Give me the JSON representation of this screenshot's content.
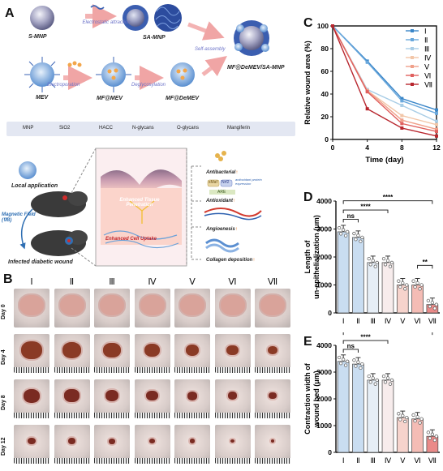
{
  "panels": {
    "a": "A",
    "b": "B",
    "c": "C",
    "d": "D",
    "e": "E"
  },
  "schematic": {
    "row1": {
      "smnp": "S-MNP",
      "samnp": "SA-MNP",
      "arrow_note": "Electrostatic attraction"
    },
    "row2": {
      "mev": "MEV",
      "mfmev": "MF@MEV",
      "mfdemev": "MF@DeMEV",
      "electroporation": "Electroporation",
      "deglycosylation": "Deglycosylation"
    },
    "assembly": {
      "note": "Self-assembly",
      "product": "MF@DeMEV/SA-MNP"
    },
    "legend": [
      "MNP",
      "SiO2",
      "HACC",
      "N-glycans",
      "O-glycans",
      "Mangiferin"
    ],
    "mouse": {
      "local": "Local  application",
      "field": "Magnetic Field (∇B)",
      "infected": "Infected diabetic wound"
    },
    "tissue": {
      "text1": "Enhanced Tissue Penetration",
      "text2": "Enhanced Cell Uptake"
    },
    "outcomes": [
      "Antibacterial",
      "Antioxidant",
      "Angioenesis",
      "Collagen deposition"
    ],
    "arrow_glyph": "↑",
    "antioxidant_labels": {
      "keap": "sMaf",
      "nrf": "Nrf2",
      "are": "ARE",
      "anti": "antioxidant protein expression"
    }
  },
  "photos": {
    "groups": [
      "Ⅰ",
      "Ⅱ",
      "Ⅲ",
      "Ⅳ",
      "Ⅴ",
      "Ⅵ",
      "Ⅶ"
    ],
    "days": [
      "Day 0",
      "Day 4",
      "Day 8",
      "Day 12"
    ]
  },
  "chart_data": [
    {
      "type": "line",
      "title": "",
      "xlabel": "Time (day)",
      "ylabel": "Relative wound area (%)",
      "x": [
        0,
        4,
        8,
        12
      ],
      "xlim": [
        0,
        12
      ],
      "ylim": [
        0,
        100
      ],
      "yticks": [
        0,
        20,
        40,
        60,
        80,
        100
      ],
      "xticks": [
        0,
        4,
        8,
        12
      ],
      "legend": "top-right",
      "series": [
        {
          "name": "Ⅰ",
          "values": [
            100,
            69,
            36,
            26
          ],
          "color": "#3a86c8"
        },
        {
          "name": "Ⅱ",
          "values": [
            100,
            68,
            34,
            23
          ],
          "color": "#6aa8dc"
        },
        {
          "name": "Ⅲ",
          "values": [
            100,
            44,
            30,
            16
          ],
          "color": "#a9cde6"
        },
        {
          "name": "Ⅳ",
          "values": [
            100,
            43,
            21,
            13
          ],
          "color": "#f2c6a8"
        },
        {
          "name": "Ⅴ",
          "values": [
            100,
            43,
            17,
            9
          ],
          "color": "#f0a08a"
        },
        {
          "name": "Ⅵ",
          "values": [
            100,
            42,
            14,
            7
          ],
          "color": "#e0605e"
        },
        {
          "name": "Ⅶ",
          "values": [
            100,
            27,
            10,
            3
          ],
          "color": "#b8262e"
        }
      ]
    },
    {
      "type": "bar",
      "title": "",
      "ylabel": "Length of un-epithelialization (μm)",
      "categories": [
        "Ⅰ",
        "Ⅱ",
        "Ⅲ",
        "Ⅳ",
        "Ⅴ",
        "Ⅵ",
        "Ⅶ"
      ],
      "values": [
        2900,
        2700,
        1800,
        1800,
        1000,
        1000,
        300
      ],
      "ylim": [
        0,
        4000
      ],
      "yticks": [
        0,
        1000,
        2000,
        3000,
        4000
      ],
      "colors": [
        "#c9ddf1",
        "#c9ddf1",
        "#e6eef6",
        "#f7ecec",
        "#f6d3cc",
        "#f4bcb5",
        "#ea8a88"
      ],
      "significance": [
        {
          "label": "ns",
          "from": 0,
          "to": 1
        },
        {
          "label": "****",
          "from": 0,
          "to": 3
        },
        {
          "label": "****",
          "from": 0,
          "to": 6
        },
        {
          "label": "**",
          "from": 5,
          "to": 6
        }
      ]
    },
    {
      "type": "bar",
      "title": "",
      "ylabel": "Contraction width of wound bed (μm)",
      "categories": [
        "Ⅰ",
        "Ⅱ",
        "Ⅲ",
        "Ⅳ",
        "Ⅴ",
        "Ⅵ",
        "Ⅶ"
      ],
      "values": [
        3400,
        3300,
        2700,
        2700,
        1300,
        1250,
        600
      ],
      "ylim": [
        0,
        4000
      ],
      "yticks": [
        0,
        1000,
        2000,
        3000,
        4000
      ],
      "colors": [
        "#c9ddf1",
        "#c9ddf1",
        "#e6eef6",
        "#f7ecec",
        "#f6d3cc",
        "#f4bcb5",
        "#ea8a88"
      ],
      "significance": [
        {
          "label": "ns",
          "from": 0,
          "to": 1
        },
        {
          "label": "****",
          "from": 0,
          "to": 3
        },
        {
          "label": "****",
          "from": 0,
          "to": 6
        }
      ]
    }
  ]
}
